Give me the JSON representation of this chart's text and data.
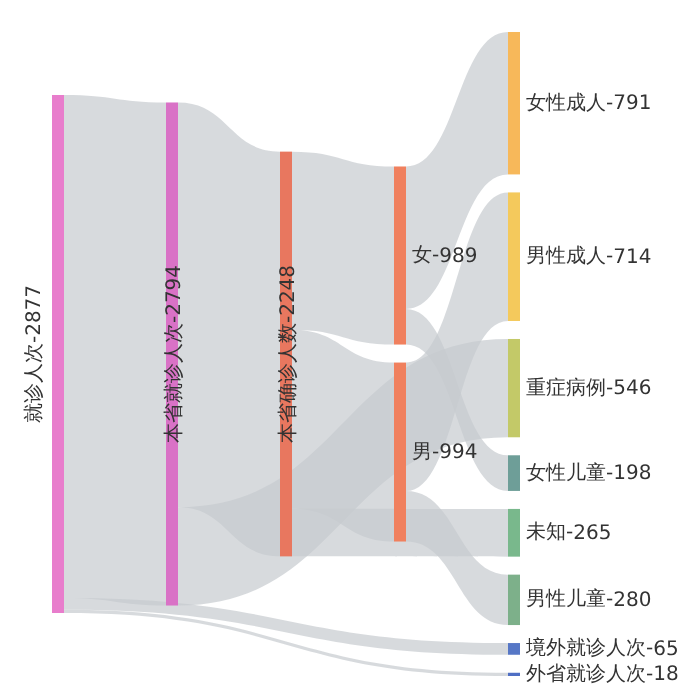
{
  "chart_data": {
    "type": "other",
    "categories": [
      "就诊人次-",
      "本省就诊人次-",
      "本省确诊人数-",
      "女-",
      "男-",
      "女性成人-",
      "男性成人-",
      "重症病例-",
      "女性儿童-",
      "未知-",
      "男性儿童-",
      "境外就诊人次-",
      "外省就诊人次-"
    ],
    "values": [
      2877,
      2794,
      2248,
      989,
      994,
      791,
      714,
      546,
      198,
      265,
      280,
      65,
      18
    ],
    "data_labels": true,
    "cells": [
      [
        null,
        true,
        null,
        null,
        null,
        null,
        null,
        null,
        null,
        null,
        null,
        true,
        true
      ],
      [
        null,
        null,
        true,
        null,
        null,
        null,
        null,
        true,
        null,
        null,
        null,
        null,
        null
      ],
      [
        null,
        null,
        null,
        true,
        true,
        null,
        null,
        null,
        null,
        true,
        null,
        null,
        null
      ],
      [
        null,
        null,
        null,
        null,
        null,
        true,
        null,
        null,
        true,
        null,
        null,
        null,
        null
      ],
      [
        null,
        null,
        null,
        null,
        null,
        null,
        true,
        null,
        null,
        null,
        true,
        null,
        null
      ],
      [
        null,
        null,
        null,
        null,
        null,
        null,
        null,
        null,
        null,
        null,
        null,
        null,
        null
      ],
      [
        null,
        null,
        null,
        null,
        null,
        null,
        null,
        null,
        null,
        null,
        null,
        null,
        null
      ],
      [
        null,
        null,
        null,
        null,
        null,
        null,
        null,
        null,
        null,
        null,
        null,
        null,
        null
      ],
      [
        null,
        null,
        null,
        null,
        null,
        null,
        null,
        null,
        null,
        null,
        null,
        null,
        null
      ],
      [
        null,
        null,
        null,
        null,
        null,
        null,
        null,
        null,
        null,
        null,
        null,
        null,
        null
      ],
      [
        null,
        null,
        null,
        null,
        null,
        null,
        null,
        null,
        null,
        null,
        null,
        null,
        null
      ],
      [
        null,
        null,
        null,
        null,
        null,
        null,
        null,
        null,
        null,
        null,
        null,
        null,
        null
      ],
      [
        null,
        null,
        null,
        null,
        null,
        null,
        null,
        null,
        null,
        null,
        null,
        null,
        null
      ]
    ],
    "colors": [
      "#e87dcc",
      "#d972c6",
      "#e8775f",
      "#f0805e",
      "#f0805e",
      "#f7b85a",
      "#f4c95c",
      "#c3c968",
      "#6e9e98",
      "#79b88c",
      "#7db08a",
      "#5677c6",
      "#4f6fc4"
    ],
    "color": "#c6cace"
  }
}
